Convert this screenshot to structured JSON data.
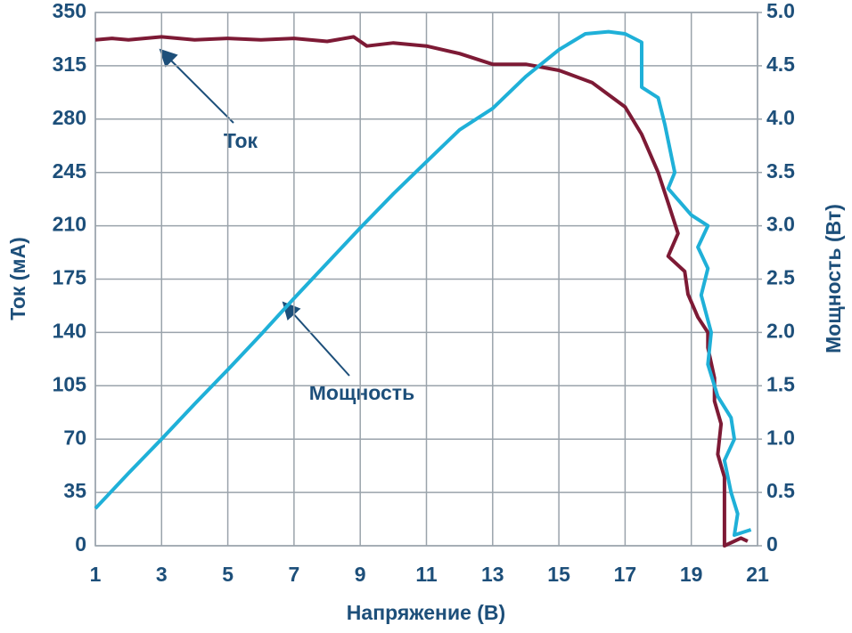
{
  "chart_data": {
    "type": "line",
    "xlabel": "Напряжение (В)",
    "ylabel": "Ток (мА)",
    "y2label": "Мощность (Вт)",
    "xlim": [
      1,
      21
    ],
    "xticks": [
      1,
      3,
      5,
      7,
      9,
      11,
      13,
      15,
      17,
      19,
      21
    ],
    "ylim": [
      0,
      350
    ],
    "yticks": [
      0,
      35,
      70,
      105,
      140,
      175,
      210,
      245,
      280,
      315,
      350
    ],
    "y2lim": [
      0,
      5
    ],
    "y2ticks": [
      0,
      0.5,
      {
        "value": 1,
        "label": "1.0"
      },
      1.5,
      {
        "value": 2,
        "label": "2.0"
      },
      2.5,
      {
        "value": 3,
        "label": "3.0"
      },
      3.5,
      {
        "value": 4,
        "label": "4.0"
      },
      4.5,
      {
        "value": 5,
        "label": "5.0"
      }
    ],
    "grid": true,
    "series": [
      {
        "name": "Ток",
        "color": "#7d1a35",
        "x": [
          1.0,
          1.5,
          2,
          3,
          4,
          5,
          6,
          7,
          8,
          8.8,
          9.2,
          10,
          11,
          12,
          13,
          14,
          15,
          16,
          16.5,
          17,
          17.5,
          18,
          18.3,
          18.6,
          18.3,
          18.8,
          18.9,
          19.2,
          19.5,
          19.5,
          19.7,
          19.7,
          19.9,
          19.8,
          20,
          20,
          20,
          20,
          20.5,
          20.7
        ],
        "values": [
          332,
          333,
          332,
          334,
          332,
          333,
          332,
          333,
          331,
          334,
          328,
          330,
          328,
          323,
          316,
          316,
          312,
          304,
          296,
          288,
          270,
          245,
          225,
          205,
          190,
          180,
          165,
          150,
          140,
          130,
          110,
          95,
          80,
          60,
          45,
          30,
          15,
          0,
          5,
          3
        ]
      },
      {
        "name": "Мощность",
        "color": "#1fb0d8",
        "axis": "y2",
        "x": [
          1,
          2,
          3,
          4,
          5,
          6,
          7,
          8,
          9,
          10,
          11,
          12,
          13,
          14,
          15,
          15.8,
          16.5,
          17,
          17.5,
          17.5,
          18,
          18.2,
          18.5,
          18.3,
          19,
          19.5,
          19.2,
          19.5,
          19.3,
          19.6,
          19.5,
          19.8,
          20.2,
          20.3,
          20.0,
          20.2,
          20.4,
          20.3,
          20.8
        ],
        "values": [
          0.35,
          0.68,
          1.0,
          1.33,
          1.65,
          1.98,
          2.32,
          2.65,
          2.98,
          3.3,
          3.6,
          3.9,
          4.1,
          4.4,
          4.65,
          4.8,
          4.82,
          4.8,
          4.72,
          4.3,
          4.2,
          3.95,
          3.5,
          3.35,
          3.1,
          3.0,
          2.8,
          2.6,
          2.35,
          2.0,
          1.7,
          1.4,
          1.2,
          1.0,
          0.8,
          0.5,
          0.3,
          0.1,
          0.15
        ]
      }
    ]
  }
}
